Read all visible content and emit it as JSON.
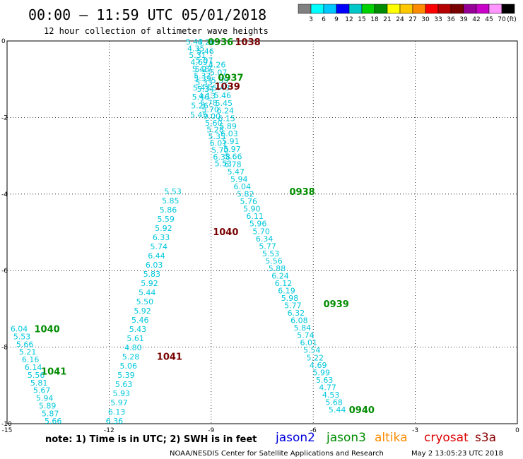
{
  "header": {
    "title": "00:00 – 11:59 UTC 05/01/2018",
    "subtitle": "12 hour collection of altimeter wave heights"
  },
  "colorbar": {
    "colors": [
      "#808080",
      "#00ffff",
      "#00c8ff",
      "#0000ff",
      "#00c8c8",
      "#00d200",
      "#008c00",
      "#ffff00",
      "#ffc800",
      "#ff8c00",
      "#ff0000",
      "#b40000",
      "#780000",
      "#960096",
      "#c800c8",
      "#ff96ff",
      "#000000"
    ],
    "labels": [
      "3",
      "6",
      "9",
      "12",
      "15",
      "18",
      "21",
      "24",
      "27",
      "30",
      "33",
      "36",
      "39",
      "42",
      "45",
      "70"
    ],
    "unit": "(ft)"
  },
  "footer": {
    "note": "note:  1) Time is in UTC;  2) SWH is in feet",
    "credit": "NOAA/NESDIS Center for Satellite Applications and Research",
    "timestamp": "May  2 13:05:23 UTC 2018"
  },
  "legend": [
    {
      "name": "jason2",
      "color": "#0000dd"
    },
    {
      "name": "jason3",
      "color": "#008c00"
    },
    {
      "name": "altika",
      "color": "#ff8c00"
    },
    {
      "name": "cryosat",
      "color": "#dd0000"
    },
    {
      "name": "s3a",
      "color": "#8b0000"
    }
  ],
  "chart_data": {
    "type": "scatter",
    "xlim": [
      -15,
      0
    ],
    "ylim": [
      -10,
      0
    ],
    "xticks": [
      "-15",
      "-12",
      "-9",
      "-6",
      "-3",
      "0"
    ],
    "yticks": [
      "0",
      "-2",
      "-4",
      "-6",
      "-8",
      "-10"
    ],
    "grid": true,
    "value_color": "#00c8dc",
    "time_labels": [
      {
        "text": "0936",
        "lon": -9.1,
        "lat": -0.02,
        "color": "#008c00"
      },
      {
        "text": "1038",
        "lon": -8.3,
        "lat": -0.02,
        "color": "#780000"
      },
      {
        "text": "0937",
        "lon": -8.8,
        "lat": -0.95,
        "color": "#008c00"
      },
      {
        "text": "1039",
        "lon": -8.9,
        "lat": -1.18,
        "color": "#780000"
      },
      {
        "text": "0938",
        "lon": -6.7,
        "lat": -3.93,
        "color": "#008c00"
      },
      {
        "text": "1040",
        "lon": -8.95,
        "lat": -4.98,
        "color": "#780000"
      },
      {
        "text": "0939",
        "lon": -5.7,
        "lat": -6.86,
        "color": "#008c00"
      },
      {
        "text": "1040",
        "lon": -14.2,
        "lat": -7.52,
        "color": "#008c00"
      },
      {
        "text": "1041",
        "lon": -10.6,
        "lat": -8.24,
        "color": "#780000"
      },
      {
        "text": "1041",
        "lon": -14.0,
        "lat": -8.63,
        "color": "#008c00"
      },
      {
        "text": "0940",
        "lon": -4.95,
        "lat": -9.63,
        "color": "#008c00"
      }
    ],
    "series": [
      {
        "name": "",
        "start": [
          -9.75,
          -0.02
        ],
        "end": [
          -8.9,
          -3.2
        ],
        "values": [
          "5.43",
          "4.35",
          "5.31",
          "4.69",
          "5.48",
          "5.37",
          "5.33",
          "5.34",
          "4.13",
          "5.78",
          "5.70",
          "9.00",
          "5.60",
          "5.28",
          "5.35",
          "6.01",
          "5.70",
          "6.38",
          "5.53"
        ]
      },
      {
        "name": "",
        "start": [
          -9.4,
          -0.03
        ],
        "end": [
          -9.62,
          -1.93
        ],
        "values": [
          "4.26",
          "5.46",
          "5.07",
          "5.27",
          "5.39",
          "5.43",
          "5.46",
          "5.26",
          "5.45"
        ]
      },
      {
        "name": "",
        "start": [
          -9.08,
          -0.62
        ],
        "end": [
          -8.6,
          -3.02
        ],
        "values": [
          "4.26",
          "5.07",
          "5.39",
          "5.43",
          "5.46",
          "5.45",
          "6.24",
          "6.15",
          "5.89",
          "6.03",
          "5.91",
          "5.97",
          "5.66"
        ]
      },
      {
        "name": "",
        "start": [
          -8.62,
          -3.22
        ],
        "end": [
          -5.55,
          -9.63
        ],
        "values": [
          "6.78",
          "5.47",
          "5.94",
          "6.04",
          "5.82",
          "5.76",
          "5.90",
          "6.11",
          "5.96",
          "5.70",
          "6.34",
          "5.77",
          "5.53",
          "5.56",
          "5.88",
          "6.24",
          "6.12",
          "6.19",
          "5.98",
          "5.77",
          "6.32",
          "6.08",
          "5.84",
          "5.74",
          "6.01",
          "5.54",
          "5.22",
          "4.69",
          "5.99",
          "5.63",
          "4.77",
          "4.53",
          "5.68",
          "5.44"
        ]
      },
      {
        "name": "",
        "start": [
          -10.38,
          -3.93
        ],
        "end": [
          -12.1,
          -9.93
        ],
        "values": [
          "5.53",
          "5.85",
          "5.86",
          "5.59",
          "5.92",
          "6.33",
          "5.74",
          "6.44",
          "6.03",
          "5.83",
          "5.92",
          "5.44",
          "5.50",
          "5.92",
          "5.46",
          "5.43",
          "5.61",
          "4.80",
          "5.28",
          "5.06",
          "5.39",
          "5.63",
          "5.93",
          "5.97",
          "6.13",
          "6.36"
        ]
      },
      {
        "name": "",
        "start": [
          -14.9,
          -7.52
        ],
        "end": [
          -13.9,
          -9.93
        ],
        "values": [
          "6.04",
          "5.53",
          "5.66",
          "5.21",
          "6.16",
          "6.14",
          "5.56",
          "5.81",
          "5.67",
          "5.94",
          "5.89",
          "5.87",
          "5.66"
        ]
      }
    ]
  }
}
